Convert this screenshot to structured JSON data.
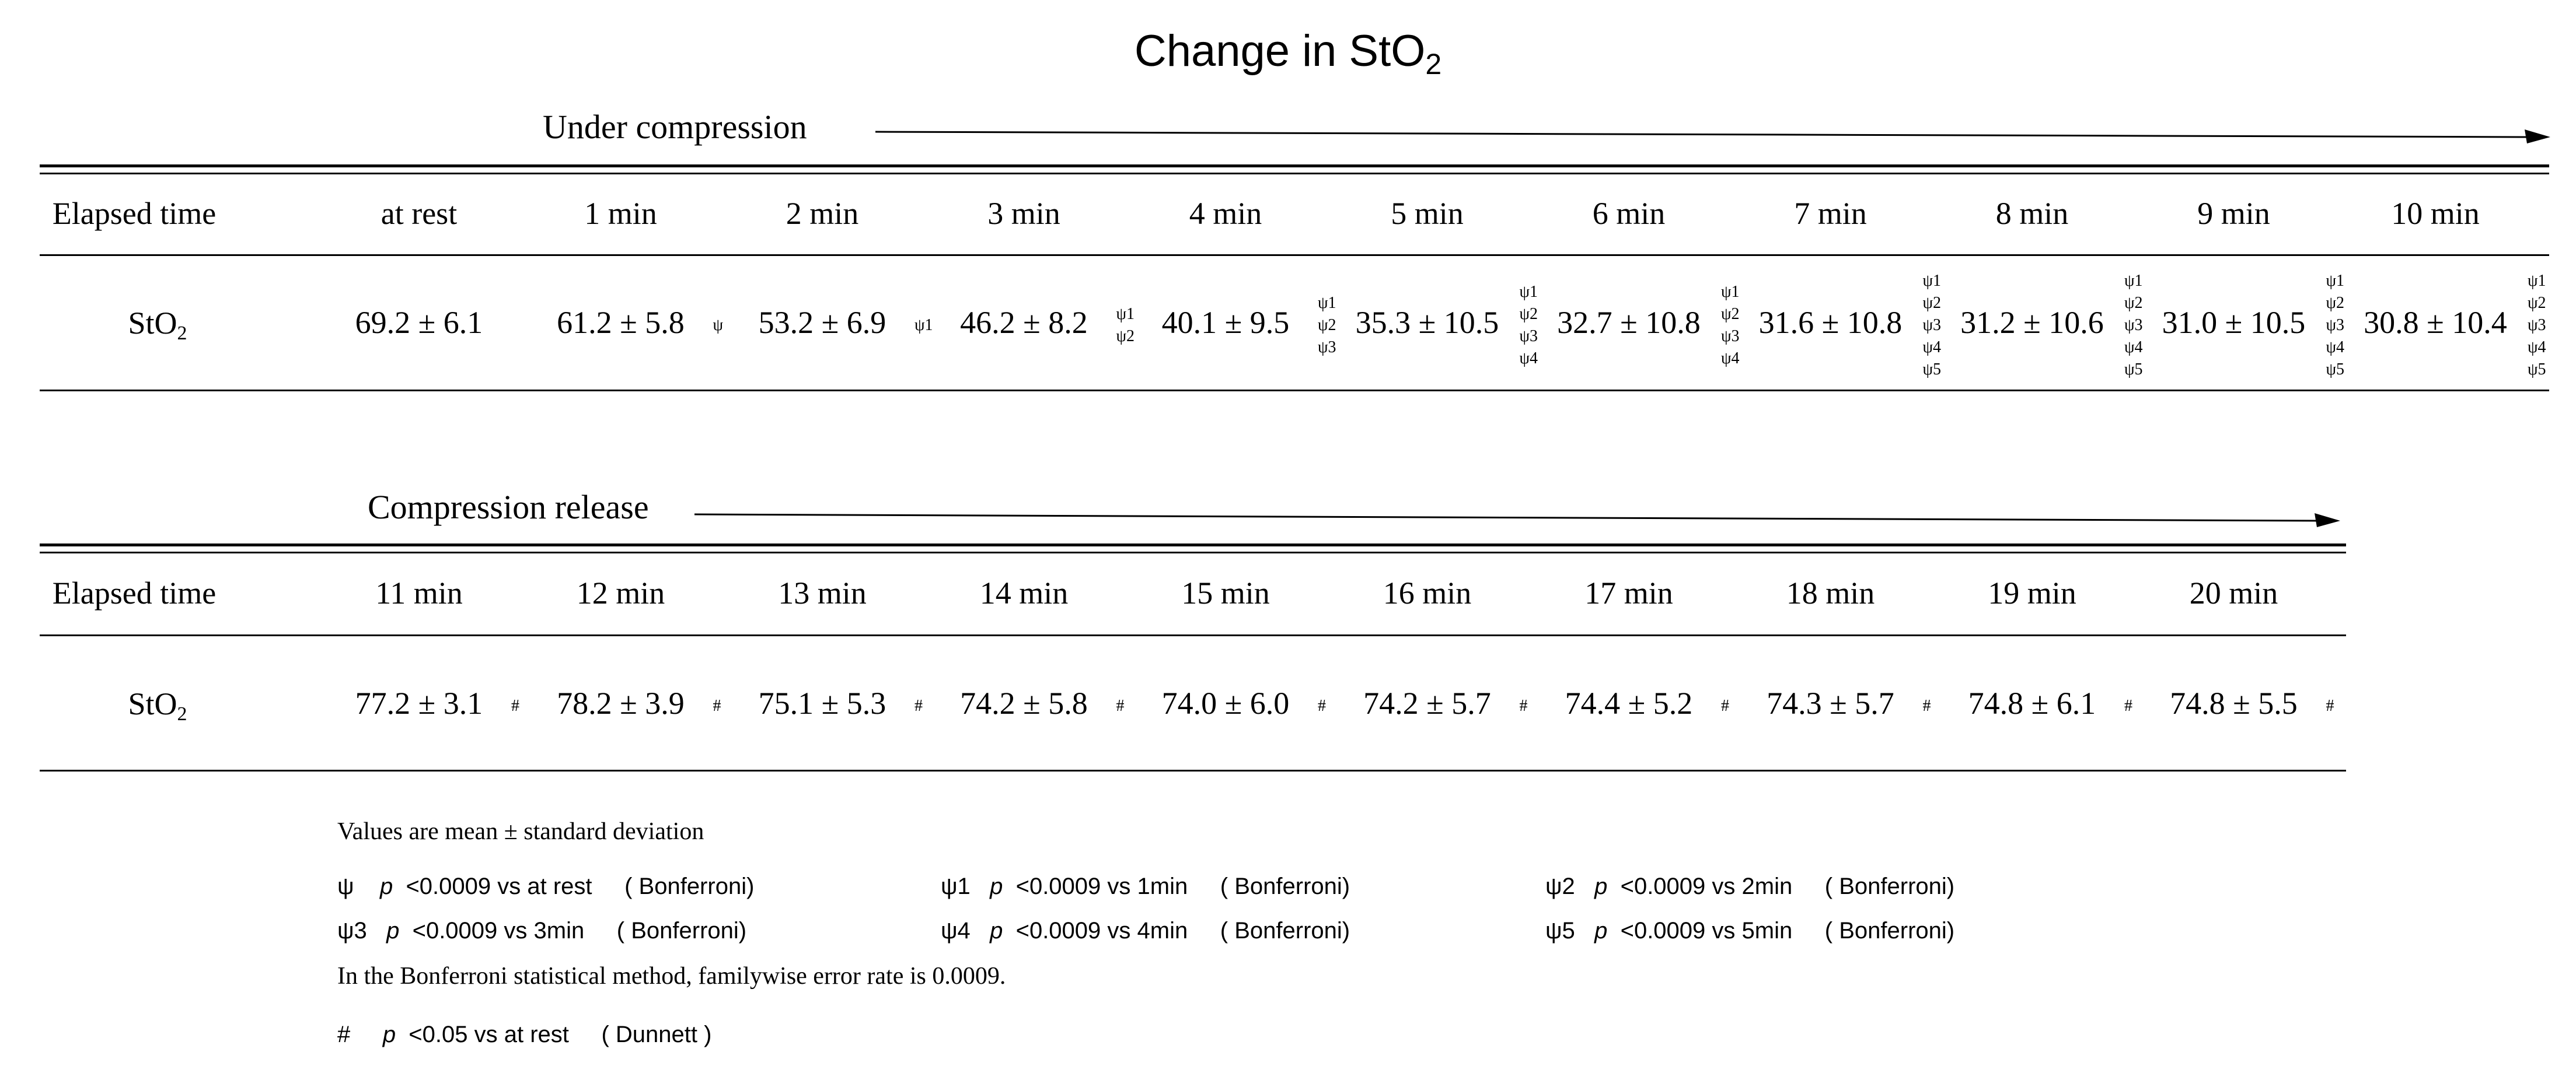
{
  "title": {
    "main": "Change in StO",
    "sub": "2"
  },
  "compression": {
    "label": "Under compression",
    "header_label": "Elapsed time",
    "row_label": "StO",
    "row_label_sub": "2",
    "times": [
      "at rest",
      "1 min",
      "2 min",
      "3 min",
      "4 min",
      "5 min",
      "6 min",
      "7 min",
      "8 min",
      "9 min",
      "10 min"
    ],
    "values": [
      "69.2 ± 6.1",
      "61.2 ± 5.8",
      "53.2 ± 6.9",
      "46.2 ± 8.2",
      "40.1 ± 9.5",
      "35.3 ± 10.5",
      "32.7 ± 10.8",
      "31.6 ± 10.8",
      "31.2 ± 10.6",
      "31.0 ± 10.5",
      "30.8 ± 10.4"
    ],
    "sig": [
      "",
      "ψ",
      "ψ1",
      "ψ1\nψ2",
      "ψ1\nψ2\nψ3",
      "ψ1\nψ2\nψ3\nψ4",
      "ψ1\nψ2\nψ3\nψ4",
      "ψ1\nψ2\nψ3\nψ4\nψ5",
      "ψ1\nψ2\nψ3\nψ4\nψ5",
      "ψ1\nψ2\nψ3\nψ4\nψ5",
      "ψ1\nψ2\nψ3\nψ4\nψ5"
    ]
  },
  "release": {
    "label": "Compression  release",
    "header_label": "Elapsed time",
    "row_label": "StO",
    "row_label_sub": "2",
    "times": [
      "11 min",
      "12 min",
      "13 min",
      "14 min",
      "15 min",
      "16 min",
      "17 min",
      "18 min",
      "19 min",
      "20 min"
    ],
    "values": [
      "77.2 ± 3.1",
      "78.2 ± 3.9",
      "75.1 ± 5.3",
      "74.2 ± 5.8",
      "74.0 ± 6.0",
      "74.2 ± 5.7",
      "74.4 ± 5.2",
      "74.3 ± 5.7",
      "74.8 ± 6.1",
      "74.8 ± 5.5"
    ],
    "sig": [
      "#",
      "#",
      "#",
      "#",
      "#",
      "#",
      "#",
      "#",
      "#",
      "#"
    ]
  },
  "footnotes": {
    "values_note": "Values  are mean ± standard deviation",
    "psi": "ψ    p  <0.0009 vs at rest     ( Bonferroni)",
    "psi1": "ψ1   p  <0.0009 vs 1min     ( Bonferroni)",
    "psi2": "ψ2   p  <0.0009 vs 2min     ( Bonferroni)",
    "psi3": "ψ3   p  <0.0009 vs 3min     ( Bonferroni)",
    "psi4": "ψ4   p  <0.0009 vs 4min     ( Bonferroni)",
    "psi5": "ψ5   p  <0.0009 vs 5min     ( Bonferroni)",
    "bonferroni_note": "In the Bonferroni statistical method, familywise error rate is  0.0009.",
    "dunnett": "#     p  <0.05 vs at rest     ( Dunnett )"
  }
}
